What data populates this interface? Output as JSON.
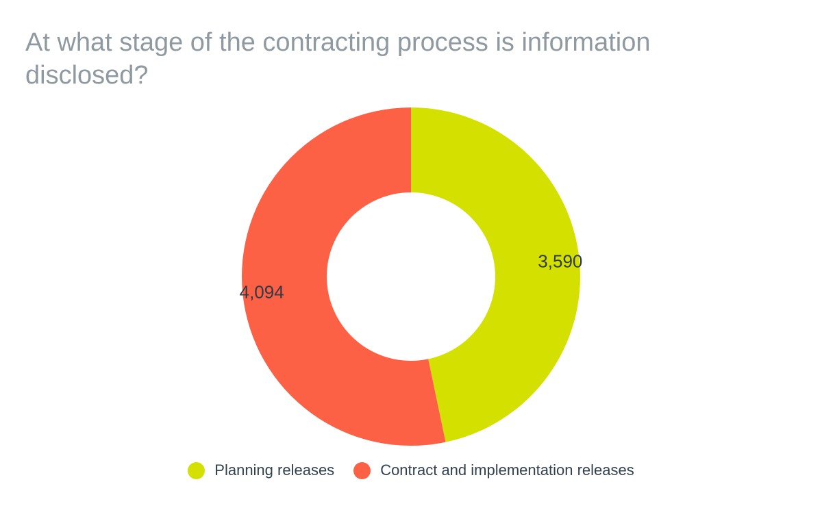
{
  "chart_data": {
    "type": "pie",
    "style": "donut",
    "title": "At what stage of the contracting process is information disclosed?",
    "slices": [
      {
        "label": "Planning releases",
        "value": 3590,
        "display": "3,590",
        "color": "#d4e000"
      },
      {
        "label": "Contract and implementation releases",
        "value": 4094,
        "display": "4,094",
        "color": "#fc6045"
      }
    ],
    "legend_position": "bottom-center"
  }
}
